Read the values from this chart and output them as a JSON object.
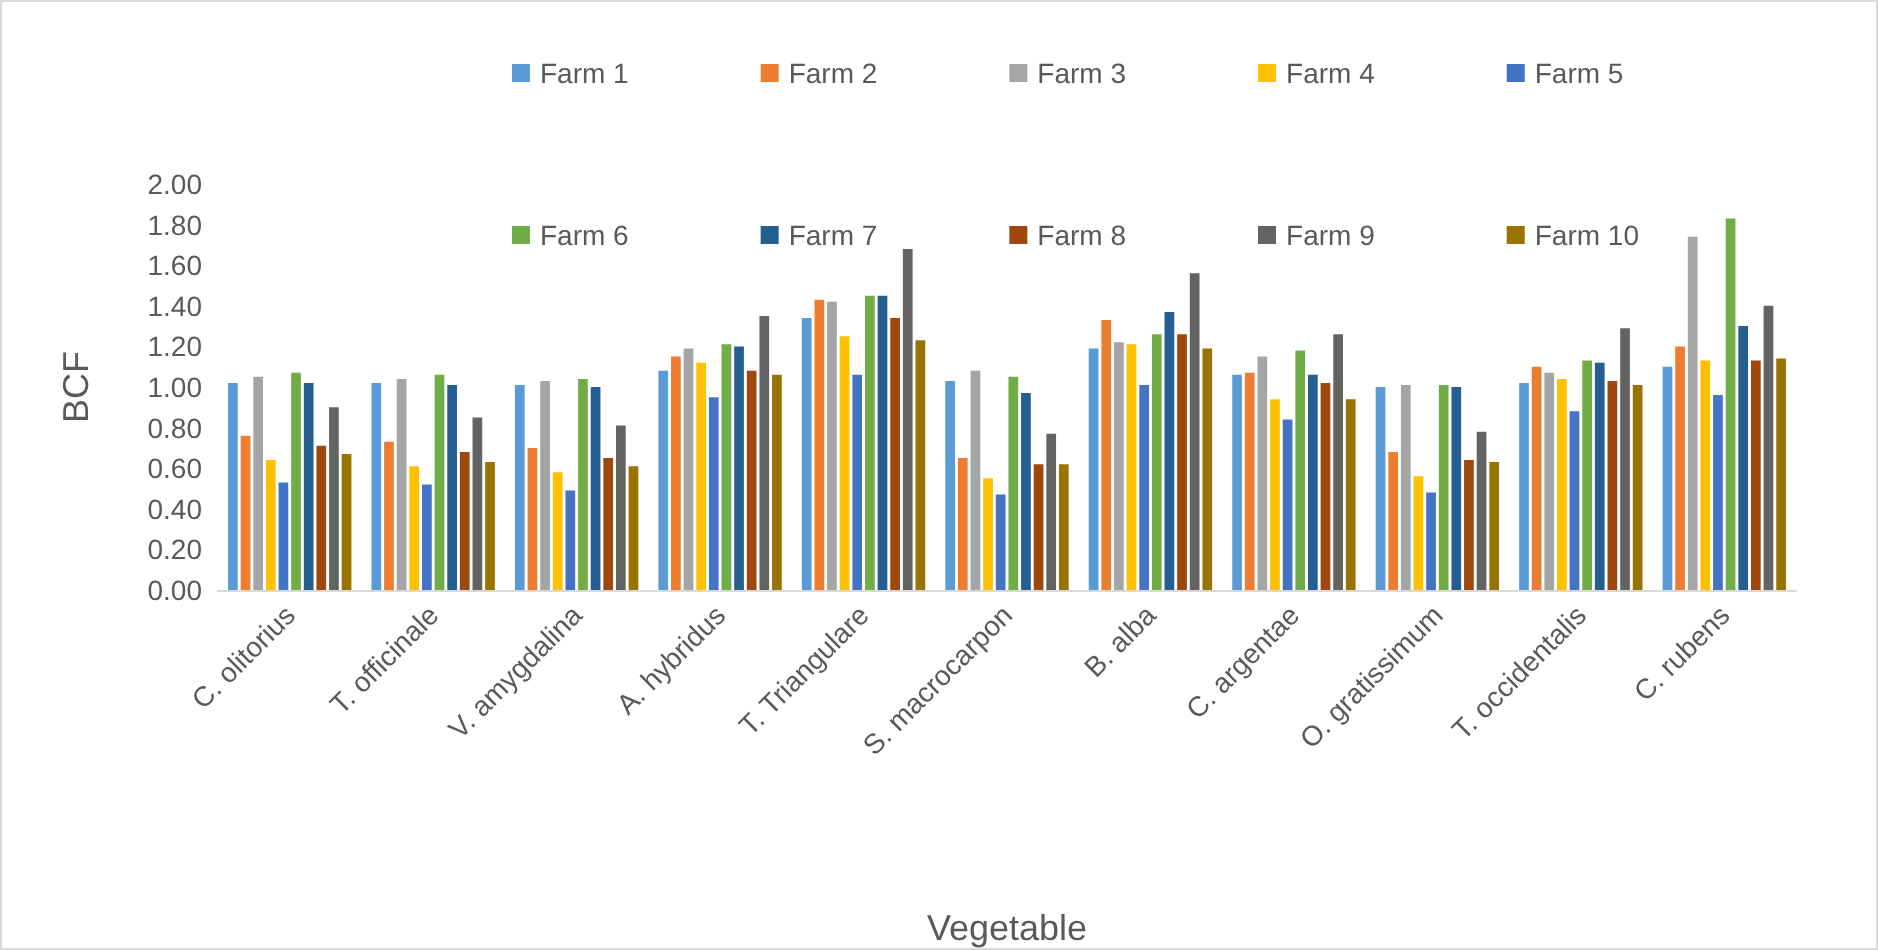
{
  "chart_data": {
    "type": "bar",
    "xlabel": "Vegetable",
    "ylabel": "BCF",
    "categories": [
      "C. olitorius",
      "T. officinale",
      "V. amygdalina",
      "A. hybridus",
      "T. Triangulare",
      "S. macrocarpon",
      "B. alba",
      "C. argentae",
      "O. gratissimum",
      "T. occidentalis",
      "C. rubens"
    ],
    "series": [
      {
        "name": "Farm 1",
        "color": "#5b9bd5",
        "values": [
          1.02,
          1.02,
          1.01,
          1.08,
          1.34,
          1.03,
          1.19,
          1.06,
          1.0,
          1.02,
          1.1
        ]
      },
      {
        "name": "Farm 2",
        "color": "#ed7d31",
        "values": [
          0.76,
          0.73,
          0.7,
          1.15,
          1.43,
          0.65,
          1.33,
          1.07,
          0.68,
          1.1,
          1.2
        ]
      },
      {
        "name": "Farm 3",
        "color": "#a5a5a5",
        "values": [
          1.05,
          1.04,
          1.03,
          1.19,
          1.42,
          1.08,
          1.22,
          1.15,
          1.01,
          1.07,
          1.74
        ]
      },
      {
        "name": "Farm 4",
        "color": "#ffc000",
        "values": [
          0.64,
          0.61,
          0.58,
          1.12,
          1.25,
          0.55,
          1.21,
          0.94,
          0.56,
          1.04,
          1.13
        ]
      },
      {
        "name": "Farm 5",
        "color": "#4472c4",
        "values": [
          0.53,
          0.52,
          0.49,
          0.95,
          1.06,
          0.47,
          1.01,
          0.84,
          0.48,
          0.88,
          0.96
        ]
      },
      {
        "name": "Farm 6",
        "color": "#70ad47",
        "values": [
          1.07,
          1.06,
          1.04,
          1.21,
          1.45,
          1.05,
          1.26,
          1.18,
          1.01,
          1.13,
          1.83
        ]
      },
      {
        "name": "Farm 7",
        "color": "#255e91",
        "values": [
          1.02,
          1.01,
          1.0,
          1.2,
          1.45,
          0.97,
          1.37,
          1.06,
          1.0,
          1.12,
          1.3
        ]
      },
      {
        "name": "Farm 8",
        "color": "#9e480e",
        "values": [
          0.71,
          0.68,
          0.65,
          1.08,
          1.34,
          0.62,
          1.26,
          1.02,
          0.64,
          1.03,
          1.13
        ]
      },
      {
        "name": "Farm 9",
        "color": "#636363",
        "values": [
          0.9,
          0.85,
          0.81,
          1.35,
          1.68,
          0.77,
          1.56,
          1.26,
          0.78,
          1.29,
          1.4
        ]
      },
      {
        "name": "Farm 10",
        "color": "#997300",
        "values": [
          0.67,
          0.63,
          0.61,
          1.06,
          1.23,
          0.62,
          1.19,
          0.94,
          0.63,
          1.01,
          1.14
        ]
      }
    ],
    "ylim": [
      0,
      2
    ],
    "yticks": [
      {
        "value": 0,
        "label": "0.00"
      },
      {
        "value": 0.2,
        "label": "0.20"
      },
      {
        "value": 0.4,
        "label": "0.40"
      },
      {
        "value": 0.6,
        "label": "0.60"
      },
      {
        "value": 0.8,
        "label": "0.80"
      },
      {
        "value": 1,
        "label": "1.00"
      },
      {
        "value": 1.2,
        "label": "1.20"
      },
      {
        "value": 1.4,
        "label": "1.40"
      },
      {
        "value": 1.6,
        "label": "1.60"
      },
      {
        "value": 1.8,
        "label": "1.80"
      },
      {
        "value": 2,
        "label": "2.00"
      }
    ],
    "grid": false,
    "legend": "top"
  }
}
